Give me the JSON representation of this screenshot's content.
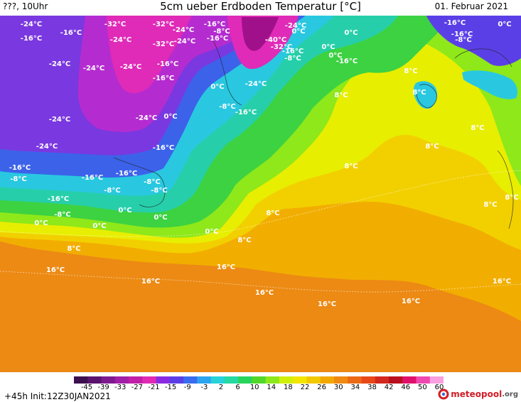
{
  "header": {
    "left": "???, 10Uhr",
    "title": "5cm ueber Erdboden Temperatur [°C]",
    "date": "01. Februar 2021"
  },
  "footer": {
    "forecast": "+45h Init:12Z30JAN2021",
    "logo_text": "meteopool",
    "logo_suffix": ".org"
  },
  "legend": {
    "ticks": [
      "-45",
      "-39",
      "-33",
      "-27",
      "-21",
      "-15",
      "-9",
      "-3",
      "2",
      "6",
      "10",
      "14",
      "18",
      "22",
      "26",
      "30",
      "34",
      "38",
      "42",
      "46",
      "50",
      "60"
    ],
    "colors": [
      "#3c0f4e",
      "#5a146e",
      "#7d1a8e",
      "#a01fa6",
      "#c21fa8",
      "#e02ab4",
      "#8a2be2",
      "#5b3fe6",
      "#3a6cf0",
      "#2ca4f0",
      "#29d2d8",
      "#26d8a2",
      "#28d45c",
      "#52d62a",
      "#8ce81a",
      "#d0f00a",
      "#f2e600",
      "#f2c800",
      "#f2a800",
      "#f08a10",
      "#ec6a14",
      "#e84818",
      "#d2281e",
      "#b8101e",
      "#e0106a",
      "#f048b0",
      "#f8a0e0"
    ]
  },
  "map_labels": [
    {
      "t": "-24°C",
      "c": "-24"
    },
    {
      "t": "-16°C",
      "c": "-16"
    },
    {
      "t": "-32°C",
      "c": "-32"
    },
    {
      "t": "-24°C",
      "c": "-24"
    },
    {
      "t": "-32°C",
      "c": "-32"
    },
    {
      "t": "-24°C",
      "c": "-24"
    },
    {
      "t": "-16°C",
      "c": "-16"
    },
    {
      "t": "-8°C",
      "c": "-8"
    },
    {
      "t": "-16°C",
      "c": "-16"
    },
    {
      "t": "-32°C",
      "c": "-32"
    },
    {
      "t": "-24°C",
      "c": "-24"
    },
    {
      "t": "-40°C",
      "c": "-40"
    },
    {
      "t": "-32°C",
      "c": "-32"
    },
    {
      "t": "-16°C",
      "c": "-16"
    },
    {
      "t": "-8°C",
      "c": "-8"
    },
    {
      "t": "0°C",
      "c": "0"
    },
    {
      "t": "-16°C",
      "c": "-16"
    },
    {
      "t": "0°C",
      "c": "0"
    },
    {
      "t": "-16°C",
      "c": "-16"
    },
    {
      "t": "-8°C",
      "c": "-8"
    },
    {
      "t": "0°C",
      "c": "0"
    },
    {
      "t": "0°C",
      "c": "0"
    },
    {
      "t": "-16°C",
      "c": "-16"
    },
    {
      "t": "-24°C",
      "c": "-24"
    },
    {
      "t": "-16°C",
      "c": "-16"
    },
    {
      "t": "0°C",
      "c": "0"
    },
    {
      "t": "-24°C",
      "c": "-24"
    },
    {
      "t": "-24°C",
      "c": "-24"
    },
    {
      "t": "-16°C",
      "c": "-16"
    },
    {
      "t": "8°C",
      "c": "8"
    },
    {
      "t": "0°C",
      "c": "0"
    },
    {
      "t": "-16°C",
      "c": "-16"
    },
    {
      "t": "-24°C",
      "c": "-24"
    },
    {
      "t": "8°C",
      "c": "8"
    },
    {
      "t": "-8°C",
      "c": "-8"
    },
    {
      "t": "-16°C",
      "c": "-16"
    },
    {
      "t": "-24°C",
      "c": "-24"
    },
    {
      "t": "0°C",
      "c": "0"
    },
    {
      "t": "8°C",
      "c": "8"
    },
    {
      "t": "-24°C",
      "c": "-24"
    },
    {
      "t": "-24°C",
      "c": "-24"
    },
    {
      "t": "8°C",
      "c": "8"
    },
    {
      "t": "-16°C",
      "c": "-16"
    },
    {
      "t": "-24°C",
      "c": "-24"
    },
    {
      "t": "-16°C",
      "c": "-16"
    },
    {
      "t": "-16°C",
      "c": "-16"
    },
    {
      "t": "-8°C",
      "c": "-8"
    },
    {
      "t": "8°C",
      "c": "8"
    },
    {
      "t": "-16°C",
      "c": "-16"
    },
    {
      "t": "-8°C",
      "c": "-8"
    },
    {
      "t": "-8°C",
      "c": "-8"
    },
    {
      "t": "8°C",
      "c": "8"
    },
    {
      "t": "-8°C",
      "c": "-8"
    },
    {
      "t": "0°C",
      "c": "0"
    },
    {
      "t": "-16°C",
      "c": "-16"
    },
    {
      "t": "8°C",
      "c": "8"
    },
    {
      "t": "8°C",
      "c": "8"
    },
    {
      "t": "0°C",
      "c": "0"
    },
    {
      "t": "0°C",
      "c": "0"
    },
    {
      "t": "-8°C",
      "c": "-8"
    },
    {
      "t": "0°C",
      "c": "0"
    },
    {
      "t": "8°C",
      "c": "8"
    },
    {
      "t": "0°C",
      "c": "0"
    },
    {
      "t": "8°C",
      "c": "8"
    },
    {
      "t": "8°C",
      "c": "8"
    },
    {
      "t": "16°C",
      "c": "16"
    },
    {
      "t": "16°C",
      "c": "16"
    },
    {
      "t": "16°C",
      "c": "16"
    },
    {
      "t": "16°C",
      "c": "16"
    },
    {
      "t": "16°C",
      "c": "16"
    },
    {
      "t": "16°C",
      "c": "16"
    },
    {
      "t": "16°C",
      "c": "16"
    }
  ]
}
